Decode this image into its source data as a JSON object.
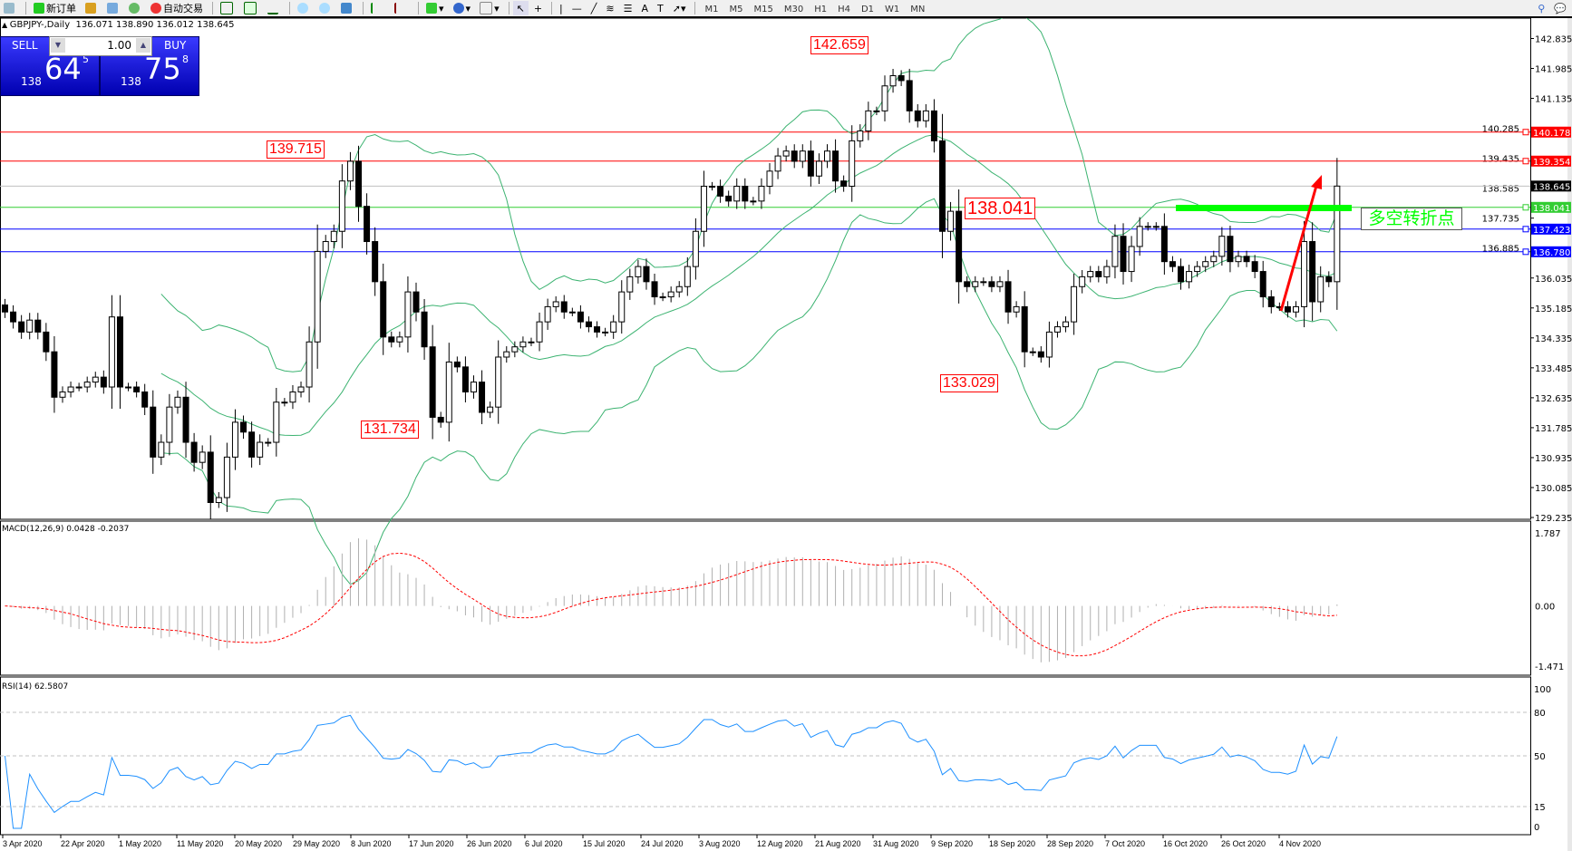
{
  "toolbar": {
    "new_order": "新订单",
    "auto_trading": "自动交易",
    "timeframes": [
      "M1",
      "M5",
      "M15",
      "M30",
      "H1",
      "H4",
      "D1",
      "W1",
      "MN"
    ]
  },
  "chart_header": {
    "symbol": "GBPJPY-,Daily",
    "ohlc": "136.071 138.890 136.012 138.645"
  },
  "trade_panel": {
    "sell_label": "SELL",
    "buy_label": "BUY",
    "lot": "1.00",
    "sell_prefix": "138",
    "sell_big": "64",
    "sell_sup": "5",
    "buy_prefix": "138",
    "buy_big": "75",
    "buy_sup": "8"
  },
  "chart_data": {
    "type": "candlestick",
    "symbol": "GBPJPY",
    "timeframe": "Daily",
    "ylim": [
      129.235,
      142.835
    ],
    "price_ticks": [
      "142.835",
      "141.985",
      "141.135",
      "140.285",
      "139.435",
      "138.585",
      "137.735",
      "136.885",
      "136.035",
      "135.185",
      "134.335",
      "133.485",
      "132.635",
      "131.785",
      "130.935",
      "130.085",
      "129.235"
    ],
    "date_labels": [
      "3 Apr 2020",
      "22 Apr 2020",
      "1 May 2020",
      "11 May 2020",
      "20 May 2020",
      "29 May 2020",
      "8 Jun 2020",
      "17 Jun 2020",
      "26 Jun 2020",
      "6 Jul 2020",
      "15 Jul 2020",
      "24 Jul 2020",
      "3 Aug 2020",
      "12 Aug 2020",
      "21 Aug 2020",
      "31 Aug 2020",
      "9 Sep 2020",
      "18 Sep 2020",
      "28 Sep 2020",
      "7 Oct 2020",
      "16 Oct 2020",
      "26 Oct 2020",
      "4 Nov 2020"
    ],
    "close": [
      135.07,
      134.79,
      134.5,
      134.84,
      134.5,
      133.94,
      132.65,
      132.8,
      132.94,
      132.94,
      133.08,
      133.22,
      132.94,
      134.93,
      132.94,
      132.94,
      132.8,
      132.37,
      130.95,
      131.37,
      132.37,
      132.65,
      131.37,
      130.8,
      131.09,
      129.66,
      129.8,
      130.95,
      131.94,
      131.66,
      130.95,
      131.37,
      131.37,
      132.51,
      132.51,
      132.8,
      132.94,
      134.22,
      136.79,
      137.07,
      137.36,
      138.79,
      139.35,
      138.07,
      137.07,
      135.93,
      134.36,
      134.22,
      134.36,
      135.64,
      135.07,
      134.08,
      132.08,
      131.94,
      133.65,
      133.51,
      132.8,
      133.08,
      132.22,
      132.37,
      133.79,
      133.94,
      134.08,
      134.22,
      134.22,
      134.79,
      135.22,
      135.36,
      135.07,
      135.07,
      134.79,
      134.65,
      134.5,
      134.5,
      134.79,
      135.64,
      136.07,
      136.36,
      135.93,
      135.5,
      135.5,
      135.64,
      135.79,
      136.36,
      137.36,
      138.64,
      138.64,
      138.36,
      138.22,
      138.64,
      138.22,
      138.22,
      138.64,
      139.07,
      139.5,
      139.64,
      139.35,
      139.64,
      138.93,
      139.35,
      139.64,
      138.79,
      138.64,
      139.93,
      140.21,
      140.78,
      140.78,
      141.49,
      141.78,
      141.64,
      140.78,
      140.5,
      140.78,
      139.93,
      137.36,
      137.93,
      135.93,
      135.79,
      135.93,
      135.93,
      135.79,
      135.93,
      135.07,
      135.22,
      133.94,
      133.94,
      133.79,
      134.5,
      134.65,
      134.79,
      135.79,
      136.07,
      136.22,
      136.07,
      136.36,
      137.22,
      136.22,
      136.93,
      137.5,
      137.5,
      137.5,
      136.5,
      136.36,
      135.93,
      136.22,
      136.36,
      136.5,
      136.65,
      137.22,
      136.5,
      136.65,
      136.5,
      136.22,
      135.5,
      135.22,
      135.22,
      135.07,
      135.22,
      137.07,
      135.36,
      136.07,
      135.93,
      138.645
    ],
    "indicators": {
      "bollinger": true,
      "macd": {
        "label": "MACD(12,26,9)",
        "values": "0.0428 -0.2037",
        "ticks": [
          "1.787",
          "0.00",
          "-1.471"
        ],
        "ylim": [
          -1.471,
          1.787
        ]
      },
      "rsi": {
        "label": "RSI(14)",
        "value": "62.5807",
        "ticks": [
          "100",
          "80",
          "50",
          "15",
          "0"
        ],
        "levels": [
          80,
          50,
          15
        ]
      }
    },
    "horizontal_lines": [
      {
        "price": 140.178,
        "label": "140.178",
        "color": "#ff0000"
      },
      {
        "price": 139.354,
        "label": "139.354",
        "color": "#ff0000"
      },
      {
        "price": 138.645,
        "label": "138.645",
        "color": "#c0c0c0",
        "tag": "#000000"
      },
      {
        "price": 138.041,
        "label": "138.041",
        "color": "#32cd32"
      },
      {
        "price": 137.423,
        "label": "137.423",
        "color": "#0000ff"
      },
      {
        "price": 136.78,
        "label": "136.780",
        "color": "#0000ff"
      }
    ],
    "annotations": [
      "142.659",
      "139.715",
      "131.734",
      "133.029",
      "138.041"
    ],
    "turning_point_label": "多空转折点",
    "colors": {
      "bands": "#3cb371",
      "macd_signal": "#ff0000",
      "rsi": "#1e90ff",
      "arrow": "#ff0000",
      "level": "#00ff00"
    }
  }
}
